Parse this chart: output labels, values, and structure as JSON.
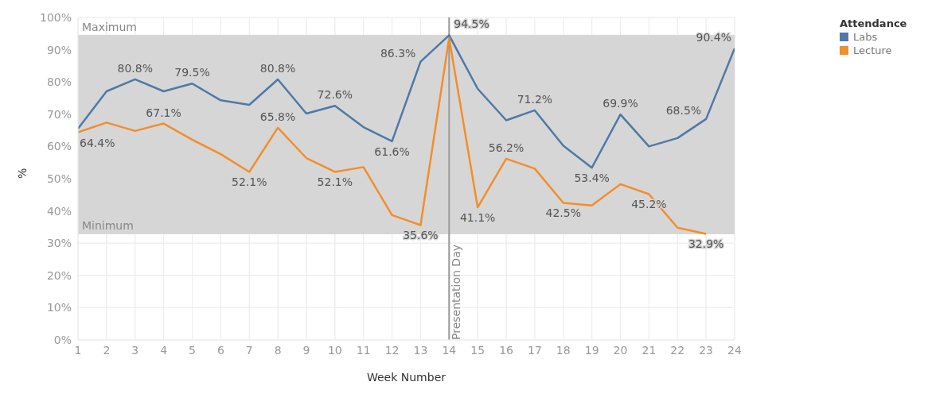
{
  "chart_data": {
    "type": "line",
    "xlabel": "Week Number",
    "ylabel": "%",
    "legend_title": "Attendance",
    "legend": "top right",
    "grid": true,
    "marker": "none",
    "line_style": "solid",
    "x": [
      1,
      2,
      3,
      4,
      5,
      6,
      7,
      8,
      9,
      10,
      11,
      12,
      13,
      14,
      15,
      16,
      17,
      18,
      19,
      20,
      21,
      22,
      23,
      24
    ],
    "xlim": [
      1,
      24
    ],
    "xticks": [
      1,
      2,
      3,
      4,
      5,
      6,
      7,
      8,
      9,
      10,
      11,
      12,
      13,
      14,
      15,
      16,
      17,
      18,
      19,
      20,
      21,
      22,
      23,
      24
    ],
    "ylim": [
      0,
      100
    ],
    "yticks": [
      {
        "value": 0,
        "label": "0%"
      },
      {
        "value": 10,
        "label": "10%"
      },
      {
        "value": 20,
        "label": "20%"
      },
      {
        "value": 30,
        "label": "30%"
      },
      {
        "value": 40,
        "label": "40%"
      },
      {
        "value": 50,
        "label": "50%"
      },
      {
        "value": 60,
        "label": "60%"
      },
      {
        "value": 70,
        "label": "70%"
      },
      {
        "value": 80,
        "label": "80%"
      },
      {
        "value": 90,
        "label": "90%"
      },
      {
        "value": 100,
        "label": "100%"
      }
    ],
    "series": [
      {
        "name": "Labs",
        "color": "#4e79a7",
        "values": [
          65.5,
          77.1,
          80.8,
          77.1,
          79.5,
          74.3,
          72.9,
          80.8,
          70.2,
          72.6,
          66,
          61.6,
          86.3,
          94.5,
          77.9,
          68.1,
          71.2,
          60.2,
          53.4,
          69.9,
          60,
          62.6,
          68.5,
          90.4
        ],
        "value_labels": [
          null,
          null,
          "80.8%",
          null,
          "79.5%",
          null,
          null,
          "80.8%",
          null,
          "72.6%",
          null,
          "61.6%",
          "86.3%",
          "94.5%",
          null,
          null,
          "71.2%",
          null,
          "53.4%",
          "69.9%",
          null,
          null,
          "68.5%",
          "90.4%"
        ]
      },
      {
        "name": "Lecture",
        "color": "#f28e2b",
        "values": [
          64.4,
          67.4,
          64.8,
          67.1,
          62.1,
          57.6,
          52.1,
          65.8,
          56.4,
          52.1,
          53.6,
          38.7,
          35.6,
          93.6,
          41.1,
          56.2,
          53.1,
          42.5,
          41.7,
          48.3,
          45.2,
          34.8,
          32.9,
          null
        ],
        "value_labels": [
          "64.4%",
          null,
          null,
          "67.1%",
          null,
          null,
          "52.1%",
          "65.8%",
          null,
          "52.1%",
          null,
          null,
          "35.6%",
          null,
          "41.1%",
          "56.2%",
          null,
          "42.5%",
          null,
          null,
          "45.2%",
          null,
          "32.9%",
          null
        ]
      }
    ],
    "bands": [
      {
        "axis": "y",
        "from": 32.9,
        "to": 94.5,
        "color": "#d6d6d6"
      }
    ],
    "ref_lines": [
      {
        "axis": "y",
        "value": 94.5,
        "label": "Maximum",
        "color": "#d6d6d6"
      },
      {
        "axis": "y",
        "value": 32.9,
        "label": "Minimum",
        "color": "#d6d6d6"
      },
      {
        "axis": "x",
        "value": 14,
        "label": "Presentation Day",
        "color": "#999999"
      }
    ]
  }
}
